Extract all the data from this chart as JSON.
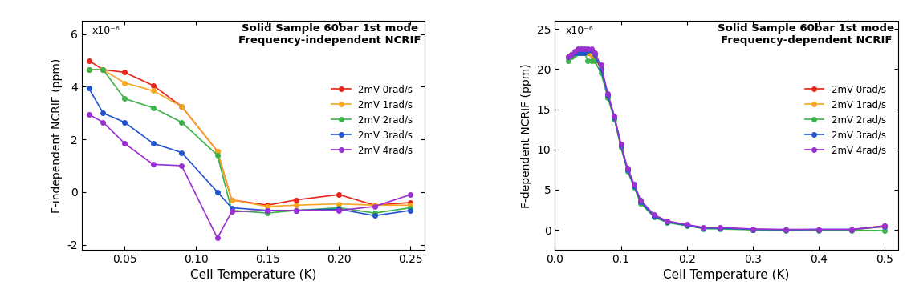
{
  "left": {
    "title": "Solid Sample 60bar 1st mode\nFrequency-independent NCRIF",
    "xlabel": "Cell Temperature (K)",
    "ylabel": "F-independent NCRIF (ppm)",
    "scale_label": "x10⁻⁶",
    "xlim": [
      0.02,
      0.26
    ],
    "ylim_raw": [
      -2.2,
      6.5
    ],
    "xticks": [
      0.05,
      0.1,
      0.15,
      0.2,
      0.25
    ],
    "ytick_labels": [
      "-2",
      "0",
      "2",
      "4",
      "6"
    ],
    "ytick_vals": [
      -2,
      0,
      2,
      4,
      6
    ],
    "colors": [
      "#e8251a",
      "#f5a623",
      "#3cb34a",
      "#2255cc",
      "#9b30d0"
    ],
    "labels": [
      "2mV 0rad/s",
      "2mV 1rad/s",
      "2mV 2rad/s",
      "2mV 3rad/s",
      "2mV 4rad/s"
    ],
    "series": [
      [
        0.025,
        0.035,
        0.05,
        0.07,
        0.09,
        0.115,
        0.125,
        0.15,
        0.17,
        0.2,
        0.225,
        0.25
      ],
      [
        0.025,
        0.035,
        0.05,
        0.07,
        0.09,
        0.115,
        0.125,
        0.15,
        0.17,
        0.2,
        0.225,
        0.25
      ],
      [
        0.025,
        0.035,
        0.05,
        0.07,
        0.09,
        0.115,
        0.125,
        0.15,
        0.17,
        0.2,
        0.225,
        0.25
      ],
      [
        0.025,
        0.035,
        0.05,
        0.07,
        0.09,
        0.115,
        0.125,
        0.15,
        0.17,
        0.2,
        0.225,
        0.25
      ],
      [
        0.025,
        0.035,
        0.05,
        0.07,
        0.09,
        0.115,
        0.125,
        0.15,
        0.17,
        0.2,
        0.225,
        0.25
      ]
    ],
    "values": [
      [
        5.0,
        4.65,
        4.55,
        4.05,
        3.25,
        1.55,
        -0.3,
        -0.5,
        -0.3,
        -0.1,
        -0.5,
        -0.4
      ],
      [
        4.65,
        4.65,
        4.15,
        3.85,
        3.25,
        1.55,
        -0.3,
        -0.55,
        -0.5,
        -0.45,
        -0.5,
        -0.5
      ],
      [
        4.65,
        4.65,
        3.55,
        3.2,
        2.65,
        1.4,
        -0.7,
        -0.8,
        -0.7,
        -0.6,
        -0.8,
        -0.6
      ],
      [
        3.95,
        3.0,
        2.65,
        1.85,
        1.5,
        0.0,
        -0.6,
        -0.7,
        -0.7,
        -0.65,
        -0.9,
        -0.7
      ],
      [
        2.95,
        2.65,
        1.85,
        1.05,
        1.0,
        -1.75,
        -0.75,
        -0.7,
        -0.7,
        -0.7,
        -0.55,
        -0.1
      ]
    ]
  },
  "right": {
    "title": "Solid Sample 60bar 1st mode\nFrequency-dependent NCRIF",
    "xlabel": "Cell Temperature (K)",
    "ylabel": "F-dependent NCRIF (ppm)",
    "scale_label": "x10⁻⁶",
    "xlim": [
      0.0,
      0.52
    ],
    "ylim_raw": [
      -2.5,
      26
    ],
    "xticks": [
      0.0,
      0.1,
      0.2,
      0.3,
      0.4,
      0.5
    ],
    "ytick_labels": [
      "0",
      "5",
      "10",
      "15",
      "20",
      "25"
    ],
    "ytick_vals": [
      0,
      5,
      10,
      15,
      20,
      25
    ],
    "colors": [
      "#e8251a",
      "#f5a623",
      "#3cb34a",
      "#2255cc",
      "#9b30d0"
    ],
    "labels": [
      "2mV 0rad/s",
      "2mV 1rad/s",
      "2mV 2rad/s",
      "2mV 3rad/s",
      "2mV 4rad/s"
    ],
    "series": [
      [
        0.02,
        0.025,
        0.03,
        0.035,
        0.04,
        0.045,
        0.05,
        0.055,
        0.06,
        0.07,
        0.08,
        0.09,
        0.1,
        0.11,
        0.12,
        0.13,
        0.15,
        0.17,
        0.2,
        0.225,
        0.25,
        0.3,
        0.35,
        0.4,
        0.45,
        0.5
      ],
      [
        0.02,
        0.025,
        0.03,
        0.035,
        0.04,
        0.045,
        0.05,
        0.055,
        0.06,
        0.07,
        0.08,
        0.09,
        0.1,
        0.11,
        0.12,
        0.13,
        0.15,
        0.17,
        0.2,
        0.225,
        0.25,
        0.3,
        0.35,
        0.4,
        0.45,
        0.5
      ],
      [
        0.02,
        0.025,
        0.03,
        0.035,
        0.04,
        0.045,
        0.05,
        0.055,
        0.06,
        0.07,
        0.08,
        0.09,
        0.1,
        0.11,
        0.12,
        0.13,
        0.15,
        0.17,
        0.2,
        0.225,
        0.25,
        0.3,
        0.35,
        0.4,
        0.45,
        0.5
      ],
      [
        0.02,
        0.025,
        0.03,
        0.035,
        0.04,
        0.045,
        0.05,
        0.055,
        0.06,
        0.07,
        0.08,
        0.09,
        0.1,
        0.11,
        0.12,
        0.13,
        0.15,
        0.17,
        0.2,
        0.225,
        0.25,
        0.3,
        0.35,
        0.4,
        0.45,
        0.5
      ],
      [
        0.02,
        0.025,
        0.03,
        0.035,
        0.04,
        0.045,
        0.05,
        0.055,
        0.06,
        0.07,
        0.08,
        0.09,
        0.1,
        0.11,
        0.12,
        0.13,
        0.15,
        0.17,
        0.2,
        0.225,
        0.25,
        0.3,
        0.35,
        0.4,
        0.45,
        0.5
      ]
    ],
    "values": [
      [
        21.5,
        21.8,
        22.0,
        22.0,
        22.0,
        22.0,
        22.0,
        21.8,
        21.5,
        20.0,
        16.8,
        14.0,
        10.5,
        7.5,
        5.5,
        3.5,
        1.7,
        1.0,
        0.55,
        0.2,
        0.2,
        0.05,
        0.0,
        0.0,
        0.0,
        0.5
      ],
      [
        21.5,
        21.8,
        22.0,
        22.0,
        22.0,
        22.0,
        22.0,
        21.8,
        21.5,
        20.0,
        16.8,
        14.0,
        10.5,
        7.5,
        5.5,
        3.5,
        1.7,
        1.0,
        0.55,
        0.2,
        0.2,
        0.05,
        0.0,
        0.0,
        0.0,
        0.4
      ],
      [
        21.0,
        21.5,
        21.8,
        22.0,
        22.0,
        22.0,
        21.0,
        21.0,
        21.0,
        19.5,
        16.5,
        13.8,
        10.3,
        7.3,
        5.3,
        3.3,
        1.6,
        0.9,
        0.5,
        0.15,
        0.1,
        0.0,
        -0.1,
        -0.05,
        -0.05,
        -0.1
      ],
      [
        21.5,
        21.8,
        22.0,
        22.0,
        22.0,
        22.0,
        22.3,
        22.3,
        21.8,
        20.0,
        16.8,
        14.0,
        10.5,
        7.5,
        5.5,
        3.5,
        1.7,
        1.0,
        0.55,
        0.2,
        0.2,
        0.05,
        0.0,
        0.05,
        0.05,
        0.4
      ],
      [
        21.5,
        21.8,
        22.2,
        22.5,
        22.5,
        22.5,
        22.5,
        22.5,
        22.0,
        20.5,
        17.0,
        14.2,
        10.7,
        7.7,
        5.7,
        3.7,
        1.9,
        1.1,
        0.65,
        0.3,
        0.3,
        0.1,
        0.05,
        0.05,
        0.05,
        0.5
      ]
    ]
  },
  "fig_bg": "#ffffff",
  "axes_bg": "#ffffff"
}
